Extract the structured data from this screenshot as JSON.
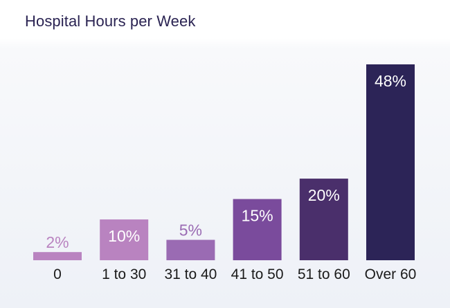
{
  "chart_data": {
    "type": "bar",
    "title": "Hospital Hours per Week",
    "categories": [
      "0",
      "1 to 30",
      "31 to 40",
      "41 to 50",
      "51 to 60",
      "Over 60"
    ],
    "values": [
      2,
      10,
      5,
      15,
      20,
      48
    ],
    "value_labels": [
      "2%",
      "10%",
      "5%",
      "15%",
      "20%",
      "48%"
    ],
    "colors": [
      "#b983c0",
      "#b983c0",
      "#9a6bb3",
      "#7a4b9c",
      "#4a2f6b",
      "#2c2457"
    ],
    "label_inside": [
      false,
      true,
      false,
      true,
      true,
      true
    ],
    "label_colors": [
      "#b983c0",
      "#ffffff",
      "#9a6bb3",
      "#ffffff",
      "#ffffff",
      "#ffffff"
    ],
    "xlabel": "",
    "ylabel": "",
    "ylim": [
      0,
      48
    ],
    "grid": false,
    "legend": "none"
  }
}
